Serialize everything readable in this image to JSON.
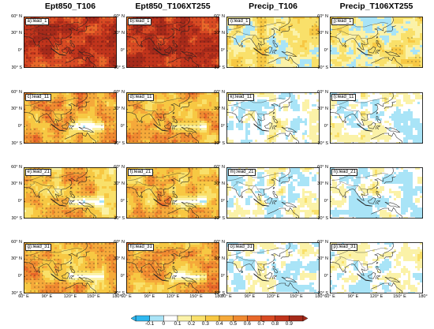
{
  "figure": {
    "column_titles": [
      "Ept850_T106",
      "Ept850_T106XT255",
      "Precip_T106",
      "Precip_T106XT255"
    ],
    "panel_labels": [
      [
        "a):lead_1",
        "b):lead_1",
        "i):lead_1",
        "j):lead_1"
      ],
      [
        "c):lead_11",
        "d):lead_11",
        "k):lead_11",
        "l):lead_11"
      ],
      [
        "e):lead_21",
        "f):lead_21",
        "m):lead_21",
        "n):lead_21"
      ],
      [
        "g):lead_31",
        "h):lead_31",
        "o):lead_31",
        "p):lead_31"
      ]
    ],
    "lat_ticks": [
      "60° N",
      "30° N",
      "0°",
      "30° S"
    ],
    "lon_ticks": [
      "60° E",
      "90° E",
      "120° E",
      "150° E",
      "180°"
    ],
    "colorbar": {
      "labels": [
        "-0.1",
        "0",
        "0.1",
        "0.2",
        "0.3",
        "0.4",
        "0.5",
        "0.6",
        "0.7",
        "0.8",
        "0.9"
      ],
      "colors": [
        "#2fb8f0",
        "#a9e4f7",
        "#ffffff",
        "#fbf2a8",
        "#f9e06a",
        "#f7c843",
        "#f5a93a",
        "#f08a30",
        "#e8682a",
        "#d84a23",
        "#c0341c",
        "#a52a1a"
      ]
    }
  },
  "chart_data": {
    "type": "heatmap",
    "rows": [
      "lead_1",
      "lead_11",
      "lead_21",
      "lead_31"
    ],
    "columns": [
      "Ept850_T106",
      "Ept850_T106XT255",
      "Precip_T106",
      "Precip_T106XT255"
    ],
    "domain": {
      "lon": [
        60,
        180
      ],
      "lat": [
        -30,
        60
      ]
    },
    "color_scale": [
      -0.1,
      0,
      0.1,
      0.2,
      0.3,
      0.4,
      0.5,
      0.6,
      0.7,
      0.8,
      0.9
    ],
    "stippling": "significance",
    "panel_mean_level": [
      [
        0.82,
        0.82,
        0.22,
        0.22
      ],
      [
        0.42,
        0.44,
        0.06,
        0.07
      ],
      [
        0.38,
        0.4,
        0.05,
        0.06
      ],
      [
        0.42,
        0.43,
        0.05,
        0.06
      ]
    ]
  }
}
